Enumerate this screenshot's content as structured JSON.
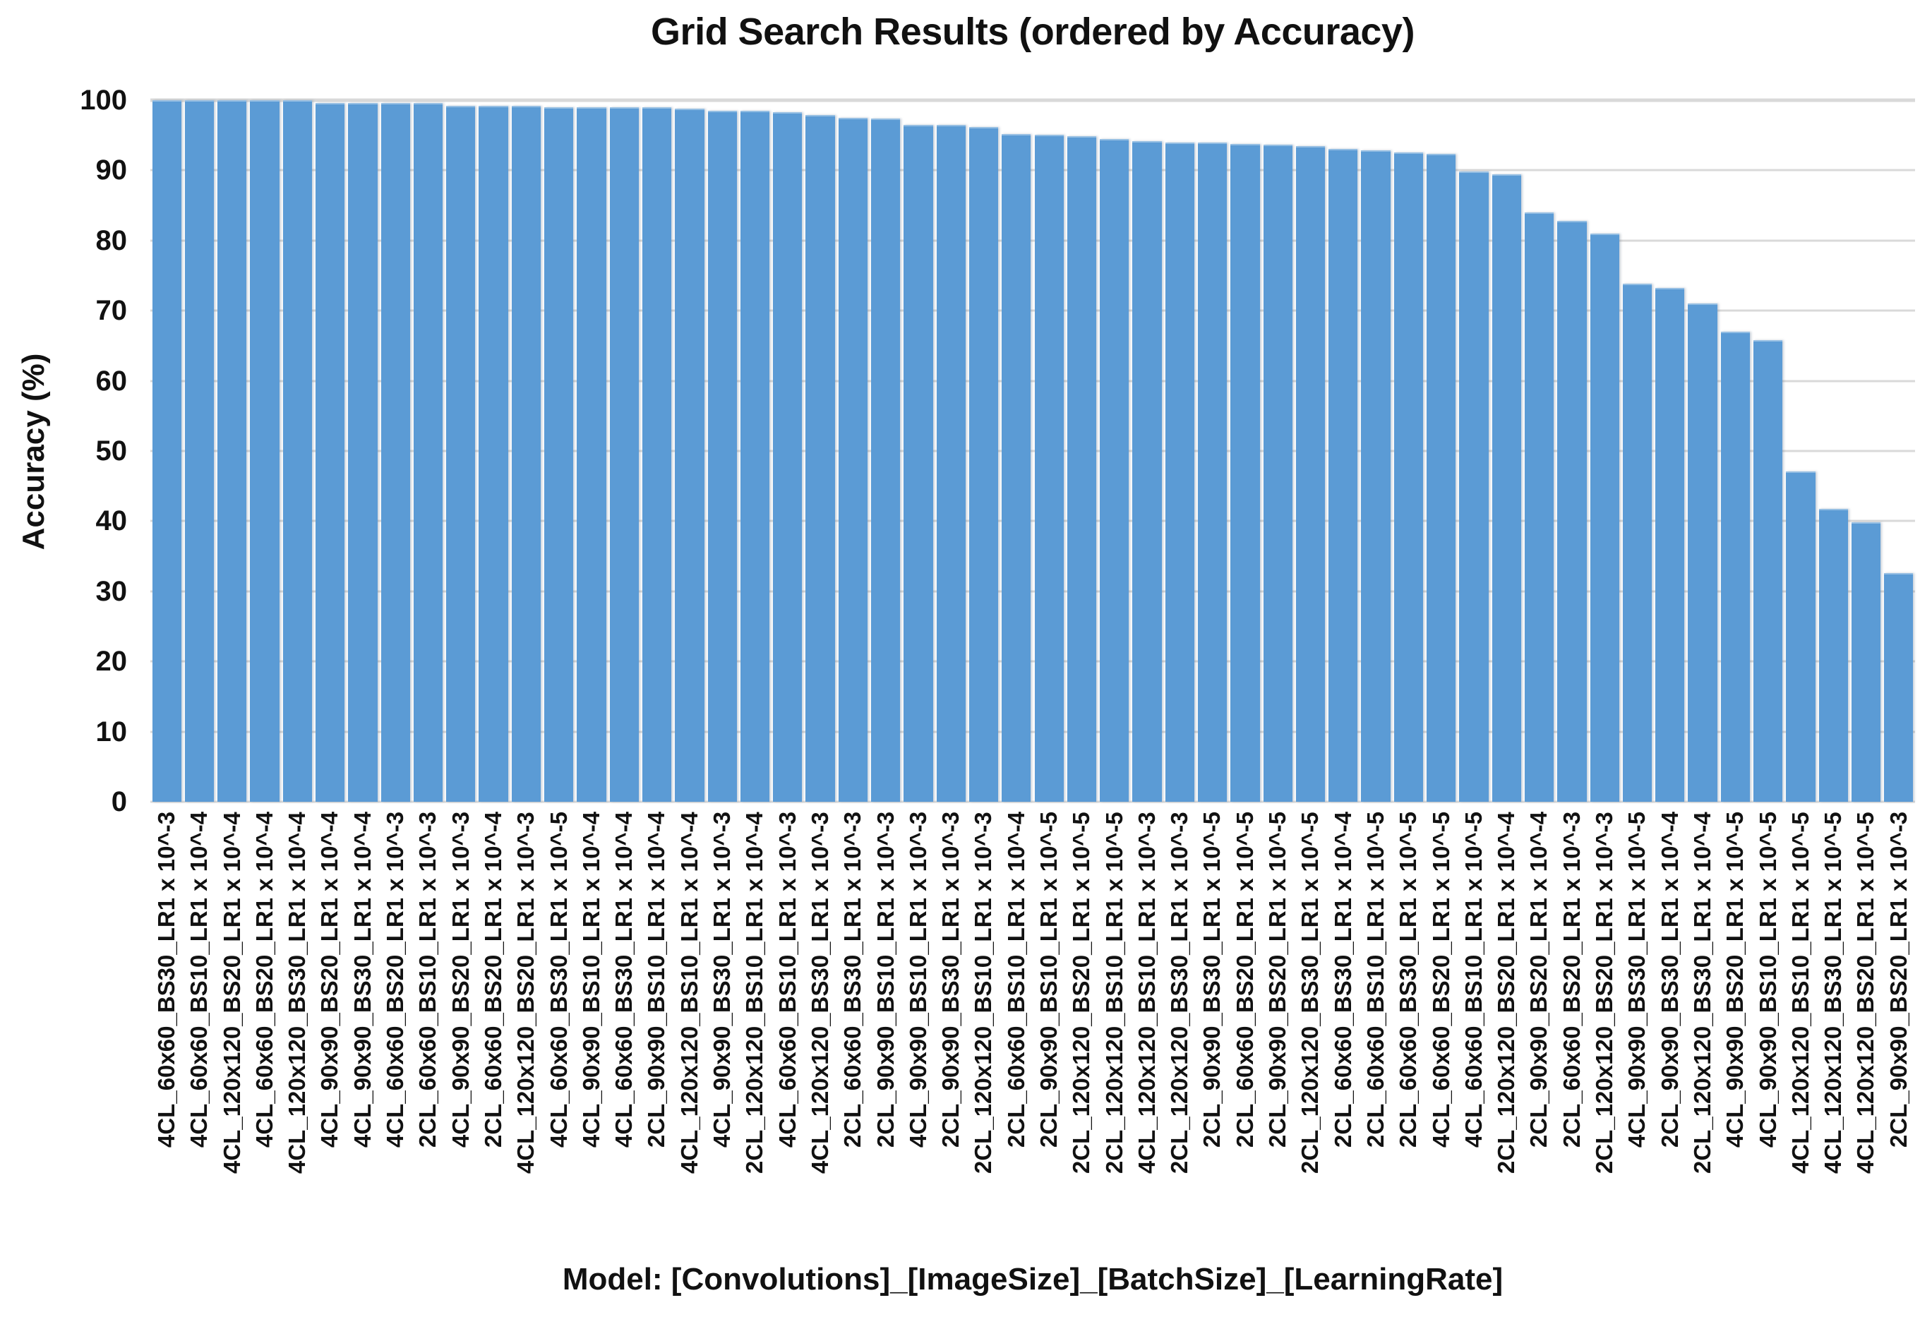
{
  "chart_data": {
    "type": "bar",
    "title": "Grid Search Results (ordered by Accuracy)",
    "ylabel": "Accuracy (%)",
    "xlabel": "Model: [Convolutions]_[ImageSize]_[BatchSize]_[LearningRate]",
    "ylim": [
      0,
      100
    ],
    "yticks": [
      0,
      10,
      20,
      30,
      40,
      50,
      60,
      70,
      80,
      90,
      100
    ],
    "grid": true,
    "legend": false,
    "bar_color": "#5b9bd5",
    "gridline_color": "#d9d9d9",
    "text_color": "#111111",
    "categories": [
      "4CL_60x60_BS30_LR1 x 10^-3",
      "4CL_60x60_BS10_LR1 x 10^-4",
      "4CL_120x120_BS20_LR1 x 10^-4",
      "4CL_60x60_BS20_LR1 x 10^-4",
      "4CL_120x120_BS30_LR1 x 10^-4",
      "4CL_90x90_BS20_LR1 x 10^-4",
      "4CL_90x90_BS30_LR1 x 10^-4",
      "4CL_60x60_BS20_LR1 x 10^-3",
      "2CL_60x60_BS10_LR1 x 10^-3",
      "4CL_90x90_BS20_LR1 x 10^-3",
      "2CL_60x60_BS20_LR1 x 10^-4",
      "4CL_120x120_BS20_LR1 x 10^-3",
      "4CL_60x60_BS30_LR1 x 10^-5",
      "4CL_90x90_BS10_LR1 x 10^-4",
      "4CL_60x60_BS30_LR1 x 10^-4",
      "2CL_90x90_BS10_LR1 x 10^-4",
      "4CL_120x120_BS10_LR1 x 10^-4",
      "4CL_90x90_BS30_LR1 x 10^-3",
      "2CL_120x120_BS10_LR1 x 10^-4",
      "4CL_60x60_BS10_LR1 x 10^-3",
      "4CL_120x120_BS30_LR1 x 10^-3",
      "2CL_60x60_BS30_LR1 x 10^-3",
      "2CL_90x90_BS10_LR1 x 10^-3",
      "4CL_90x90_BS10_LR1 x 10^-3",
      "2CL_90x90_BS30_LR1 x 10^-3",
      "2CL_120x120_BS10_LR1 x 10^-3",
      "2CL_60x60_BS10_LR1 x 10^-4",
      "2CL_90x90_BS10_LR1 x 10^-5",
      "2CL_120x120_BS20_LR1 x 10^-5",
      "2CL_120x120_BS10_LR1 x 10^-5",
      "4CL_120x120_BS10_LR1 x 10^-3",
      "2CL_120x120_BS30_LR1 x 10^-3",
      "2CL_90x90_BS30_LR1 x 10^-5",
      "2CL_60x60_BS20_LR1 x 10^-5",
      "2CL_90x90_BS20_LR1 x 10^-5",
      "2CL_120x120_BS30_LR1 x 10^-5",
      "2CL_60x60_BS30_LR1 x 10^-4",
      "2CL_60x60_BS10_LR1 x 10^-5",
      "2CL_60x60_BS30_LR1 x 10^-5",
      "4CL_60x60_BS20_LR1 x 10^-5",
      "4CL_60x60_BS10_LR1 x 10^-5",
      "2CL_120x120_BS20_LR1 x 10^-4",
      "2CL_90x90_BS20_LR1 x 10^-4",
      "2CL_60x60_BS20_LR1 x 10^-3",
      "2CL_120x120_BS20_LR1 x 10^-3",
      "4CL_90x90_BS30_LR1 x 10^-5",
      "2CL_90x90_BS30_LR1 x 10^-4",
      "2CL_120x120_BS30_LR1 x 10^-4",
      "4CL_90x90_BS20_LR1 x 10^-5",
      "4CL_90x90_BS10_LR1 x 10^-5",
      "4CL_120x120_BS10_LR1 x 10^-5",
      "4CL_120x120_BS30_LR1 x 10^-5",
      "4CL_120x120_BS20_LR1 x 10^-5",
      "2CL_90x90_BS20_LR1 x 10^-3"
    ],
    "values": [
      100,
      100,
      100,
      100,
      100,
      99.6,
      99.6,
      99.6,
      99.6,
      99.2,
      99.2,
      99.2,
      99.0,
      99.0,
      99.0,
      99.0,
      98.8,
      98.5,
      98.5,
      98.3,
      97.9,
      97.5,
      97.4,
      96.5,
      96.5,
      96.2,
      95.2,
      95.1,
      94.9,
      94.5,
      94.2,
      94.0,
      94.0,
      93.8,
      93.7,
      93.5,
      93.1,
      92.9,
      92.6,
      92.4,
      89.8,
      89.4,
      84.0,
      82.8,
      81.0,
      73.8,
      73.2,
      71.0,
      67.0,
      65.8,
      47.1,
      41.8,
      39.8,
      32.6
    ]
  }
}
